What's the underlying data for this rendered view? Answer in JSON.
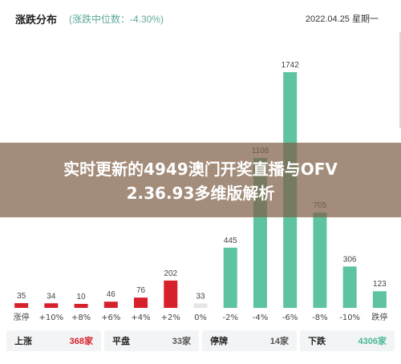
{
  "header": {
    "title": "涨跌分布",
    "subtitle": "(涨跌中位数：-4.30%)",
    "datetime": "2022.04.25 星期一"
  },
  "overlay": {
    "line1": "实时更新的4949澳门开奖直播与OFV",
    "line2": "2.36.93多维版解析"
  },
  "colors": {
    "up": "#d6202c",
    "flat": "#e6e6e6",
    "down": "#5ec3a1"
  },
  "chart_data": {
    "type": "bar",
    "categories": [
      "涨停",
      "+10%",
      "+8%",
      "+6%",
      "+4%",
      "+2%",
      "0%",
      "-2%",
      "-4%",
      "-6%",
      "-8%",
      "-10%",
      "跌停"
    ],
    "values": [
      35,
      34,
      10,
      46,
      76,
      202,
      33,
      445,
      1108,
      1742,
      705,
      306,
      123
    ],
    "value_labels": [
      "35",
      "34",
      "10",
      "46",
      "76",
      "202",
      "33",
      "445",
      "1108",
      "1742",
      "705",
      "306",
      "123"
    ],
    "bar_colors": [
      "up",
      "up",
      "up",
      "up",
      "up",
      "up",
      "flat",
      "down",
      "down",
      "down",
      "down",
      "down",
      "down"
    ],
    "ylim": [
      0,
      1742
    ],
    "grid": false
  },
  "summary": [
    {
      "label": "上涨",
      "value": "368家",
      "tone": "up"
    },
    {
      "label": "平盘",
      "value": "33家",
      "tone": "flat"
    },
    {
      "label": "停牌",
      "value": "14家",
      "tone": "halt"
    },
    {
      "label": "下跌",
      "value": "4306家",
      "tone": "down"
    }
  ]
}
